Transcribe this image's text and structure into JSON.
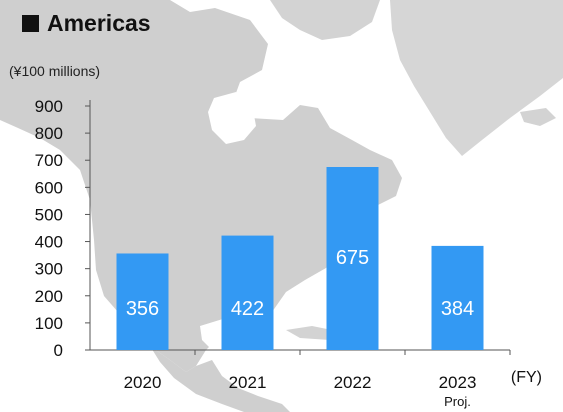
{
  "header": {
    "title": "Americas",
    "unit": "(¥100 millions)"
  },
  "colors": {
    "bar": "#3399f3",
    "axis": "#555555",
    "map_land": "#c9c9c9",
    "map_sea": "#ffffff"
  },
  "chart_data": {
    "type": "bar",
    "title": "Americas",
    "ylabel": "(¥100 millions)",
    "xlabel": "(FY)",
    "categories": [
      "2020",
      "2021",
      "2022",
      "2023"
    ],
    "category_sublabels": [
      "",
      "",
      "",
      "Proj."
    ],
    "values": [
      356,
      422,
      675,
      384
    ],
    "data_labels": [
      "356",
      "422",
      "675",
      "384"
    ],
    "ylim": [
      0,
      900
    ],
    "yticks": [
      "0",
      "100",
      "200",
      "300",
      "400",
      "500",
      "600",
      "700",
      "800",
      "900"
    ],
    "grid": false,
    "legend": "none"
  }
}
